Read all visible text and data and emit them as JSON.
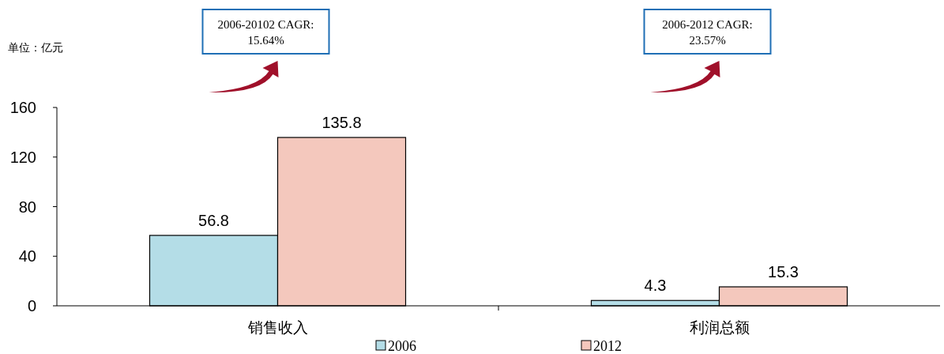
{
  "chart_data": {
    "type": "bar",
    "categories": [
      "销售收入",
      "利润总额"
    ],
    "series": [
      {
        "name": "2006",
        "color": "#b4dde7",
        "values": [
          56.8,
          4.3
        ]
      },
      {
        "name": "2012",
        "color": "#f4c8bd",
        "values": [
          135.8,
          15.3
        ]
      }
    ],
    "ylim": [
      0,
      160
    ],
    "yticks": [
      0,
      40,
      80,
      120,
      160
    ],
    "grid": false,
    "legend": "bottom",
    "data_labels": true,
    "annotations": [
      "单位：亿元",
      "2006-20102 CAGR:\n15.64%",
      "2006-2012 CAGR:\n23.57%"
    ]
  }
}
